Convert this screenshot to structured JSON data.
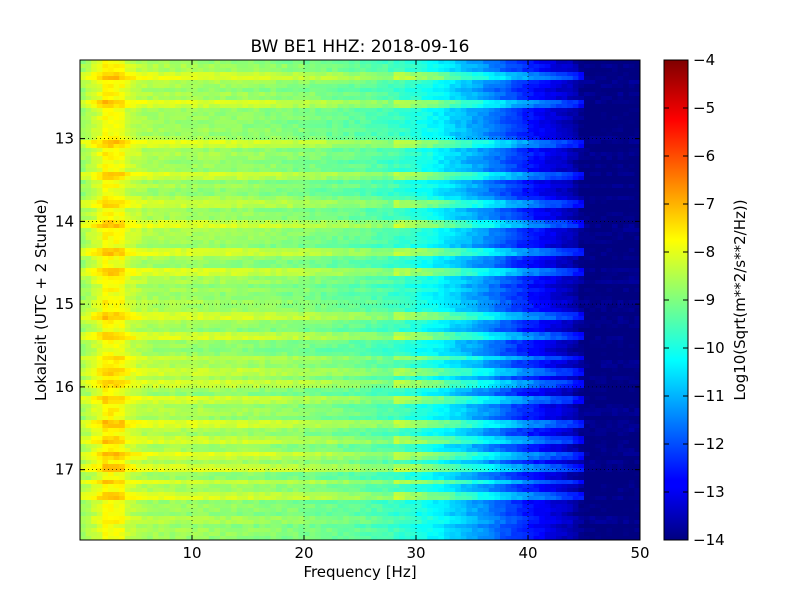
{
  "chart_data": {
    "type": "heatmap",
    "title": "BW BE1 HHZ: 2018-09-16",
    "xlabel": "Frequency [Hz]",
    "ylabel": "Lokalzeit (UTC + 2 Stunde)",
    "xlim": [
      0,
      50
    ],
    "ylim": [
      12.05,
      17.85
    ],
    "x_ticks": [
      10,
      20,
      30,
      40,
      50
    ],
    "x_tick_labels": [
      "10",
      "20",
      "30",
      "40",
      "50"
    ],
    "y_ticks": [
      13,
      14,
      15,
      16,
      17
    ],
    "y_tick_labels": [
      "13",
      "14",
      "15",
      "16",
      "17"
    ],
    "y_inverted": true,
    "grid": true,
    "colorbar": {
      "label": "Log10(Sqrt(m**2/s**2/Hz))",
      "range": [
        -14,
        -4
      ],
      "ticks": [
        -4,
        -5,
        -6,
        -7,
        -8,
        -9,
        -10,
        -11,
        -12,
        -13,
        -14
      ],
      "tick_labels": [
        "−4",
        "−5",
        "−6",
        "−7",
        "−8",
        "−9",
        "−10",
        "−11",
        "−12",
        "−13",
        "−14"
      ],
      "colormap": "jet"
    },
    "frequency_profile": {
      "freq_hz": [
        0,
        2,
        4,
        6,
        10,
        15,
        20,
        25,
        28,
        30,
        32,
        34,
        36,
        38,
        40,
        42,
        44,
        45,
        46,
        50
      ],
      "log_psd": [
        -8.8,
        -8.0,
        -8.2,
        -8.6,
        -8.7,
        -8.8,
        -9.0,
        -9.3,
        -9.6,
        -9.9,
        -10.3,
        -10.8,
        -11.3,
        -11.9,
        -12.5,
        -13.0,
        -13.5,
        -14.0,
        -14.0,
        -14.0
      ]
    },
    "high_noise_bands_hours": [
      12.25,
      12.6,
      13.05,
      13.45,
      13.8,
      14.05,
      14.35,
      14.6,
      15.15,
      15.4,
      15.65,
      15.8,
      15.95,
      16.15,
      16.45,
      16.65,
      16.85,
      17.0,
      17.15,
      17.3
    ]
  }
}
